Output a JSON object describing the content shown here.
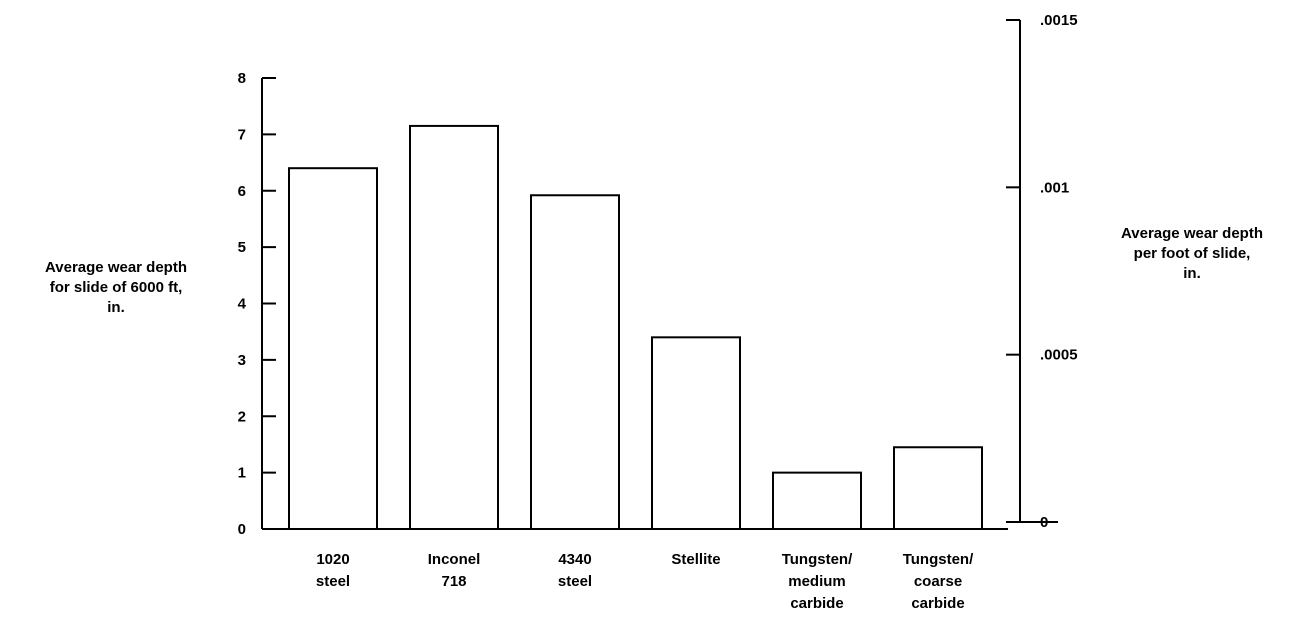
{
  "chart_data": {
    "type": "bar",
    "categories": [
      [
        "1020",
        "steel"
      ],
      [
        "Inconel",
        "718"
      ],
      [
        "4340",
        "steel"
      ],
      [
        "Stellite"
      ],
      [
        "Tungsten/",
        "medium",
        "carbide"
      ],
      [
        "Tungsten/",
        "coarse",
        "carbide"
      ]
    ],
    "values": [
      6.4,
      7.15,
      5.92,
      3.4,
      1.0,
      1.45
    ],
    "ylabel_left": [
      "Average wear depth",
      "for slide of 6000 ft,",
      "in."
    ],
    "ylabel_right": [
      "Average wear depth",
      "per foot of slide,",
      "in."
    ],
    "ylim_left": [
      0,
      8
    ],
    "yticks_left": [
      "0",
      "1",
      "2",
      "3",
      "4",
      "5",
      "6",
      "7",
      "8"
    ],
    "ylim_right": [
      0,
      0.0015
    ],
    "yticks_right": [
      {
        "value": 0,
        "label": "0"
      },
      {
        "value": 0.0005,
        "label": ".0005"
      },
      {
        "value": 0.001,
        "label": ".001"
      },
      {
        "value": 0.0015,
        "label": ".0015"
      }
    ],
    "grid": false,
    "colors": {
      "bar_fill": "#ffffff",
      "stroke": "#000000"
    }
  }
}
